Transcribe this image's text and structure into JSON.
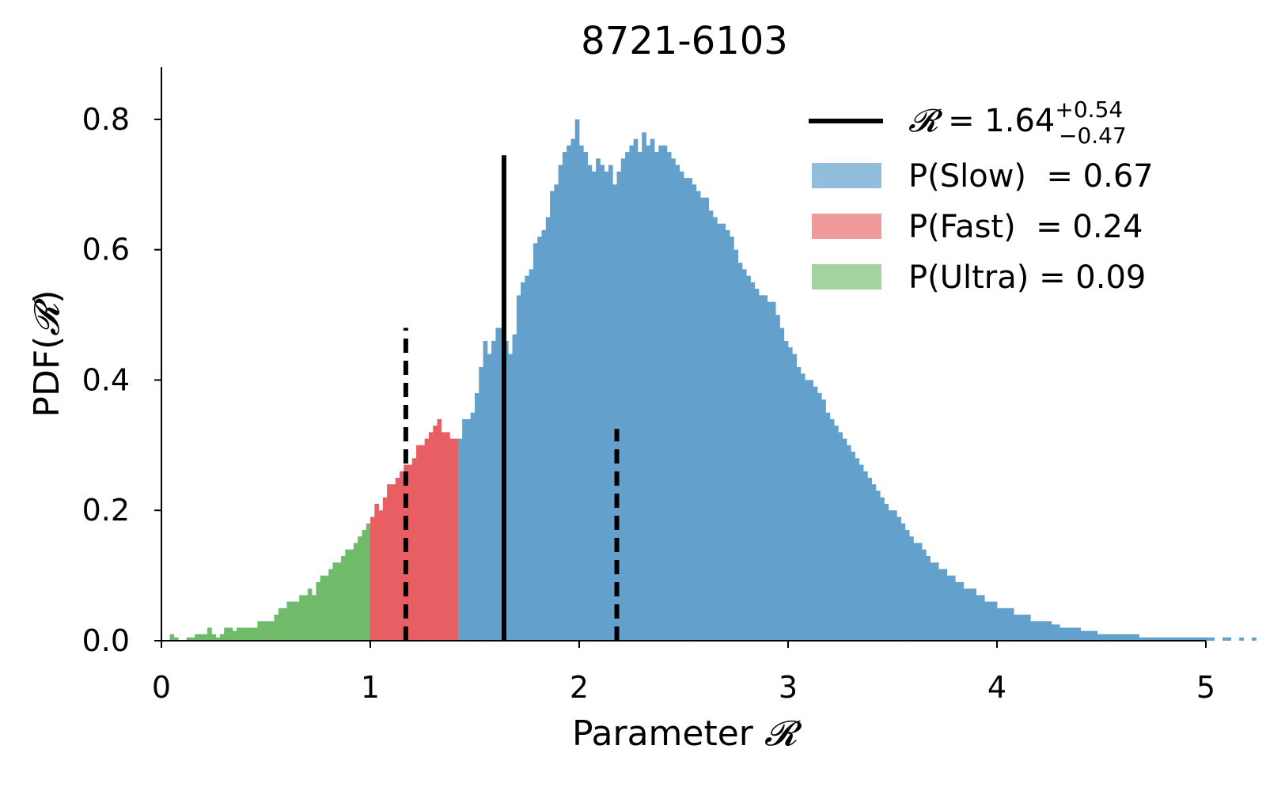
{
  "chart_data": {
    "type": "bar",
    "title": "8721-6103",
    "xlabel_prefix": "Parameter ",
    "xlabel_symbol": "𝓡",
    "ylabel_prefix": "PDF(",
    "ylabel_symbol": "𝓡",
    "ylabel_suffix": ")",
    "xlim": [
      0,
      5
    ],
    "ylim": [
      0,
      0.88
    ],
    "xticks": [
      0,
      1,
      2,
      3,
      4,
      5
    ],
    "yticks": [
      0.0,
      0.2,
      0.4,
      0.6,
      0.8
    ],
    "xtick_labels": [
      "0",
      "1",
      "2",
      "3",
      "4",
      "5"
    ],
    "ytick_labels": [
      "0.0",
      "0.2",
      "0.4",
      "0.6",
      "0.8"
    ],
    "grid": false,
    "legend_position": "top-right",
    "bin_start": 0,
    "bin_width": 0.02,
    "series": [
      {
        "name": "Ultra",
        "color": "#6fbb6a",
        "x_range": [
          0,
          1.0
        ]
      },
      {
        "name": "Fast",
        "color": "#e85f63",
        "x_range": [
          1.0,
          1.42
        ]
      },
      {
        "name": "Slow",
        "color": "#63a0cb",
        "x_range": [
          1.42,
          5.0
        ]
      }
    ],
    "densities": [
      0,
      0,
      0.01,
      0.005,
      0,
      0,
      0.005,
      0.005,
      0.01,
      0.01,
      0.01,
      0.02,
      0.01,
      0.005,
      0.01,
      0.02,
      0.02,
      0.015,
      0.02,
      0.02,
      0.02,
      0.02,
      0.02,
      0.03,
      0.03,
      0.03,
      0.03,
      0.04,
      0.05,
      0.05,
      0.06,
      0.06,
      0.06,
      0.07,
      0.07,
      0.08,
      0.07,
      0.09,
      0.1,
      0.1,
      0.11,
      0.12,
      0.12,
      0.13,
      0.14,
      0.14,
      0.15,
      0.16,
      0.17,
      0.18,
      0.19,
      0.21,
      0.2,
      0.22,
      0.24,
      0.24,
      0.25,
      0.26,
      0.27,
      0.27,
      0.28,
      0.3,
      0.3,
      0.31,
      0.32,
      0.33,
      0.34,
      0.32,
      0.32,
      0.31,
      0.31,
      0.31,
      0.34,
      0.34,
      0.35,
      0.38,
      0.42,
      0.46,
      0.44,
      0.46,
      0.48,
      0.48,
      0.46,
      0.44,
      0.47,
      0.53,
      0.55,
      0.56,
      0.57,
      0.61,
      0.62,
      0.63,
      0.65,
      0.69,
      0.7,
      0.73,
      0.75,
      0.76,
      0.77,
      0.8,
      0.76,
      0.75,
      0.73,
      0.72,
      0.74,
      0.73,
      0.72,
      0.73,
      0.7,
      0.72,
      0.74,
      0.75,
      0.76,
      0.77,
      0.75,
      0.78,
      0.76,
      0.77,
      0.75,
      0.76,
      0.76,
      0.75,
      0.74,
      0.73,
      0.72,
      0.71,
      0.71,
      0.7,
      0.69,
      0.68,
      0.68,
      0.66,
      0.65,
      0.64,
      0.64,
      0.63,
      0.62,
      0.6,
      0.58,
      0.57,
      0.56,
      0.55,
      0.54,
      0.53,
      0.53,
      0.52,
      0.52,
      0.5,
      0.48,
      0.46,
      0.45,
      0.44,
      0.42,
      0.41,
      0.4,
      0.4,
      0.39,
      0.38,
      0.37,
      0.35,
      0.34,
      0.33,
      0.32,
      0.31,
      0.3,
      0.29,
      0.28,
      0.27,
      0.26,
      0.25,
      0.24,
      0.23,
      0.22,
      0.21,
      0.2,
      0.2,
      0.19,
      0.18,
      0.17,
      0.16,
      0.15,
      0.15,
      0.14,
      0.13,
      0.12,
      0.12,
      0.11,
      0.11,
      0.1,
      0.1,
      0.09,
      0.09,
      0.08,
      0.08,
      0.08,
      0.07,
      0.07,
      0.06,
      0.06,
      0.06,
      0.05,
      0.05,
      0.05,
      0.05,
      0.04,
      0.04,
      0.04,
      0.04,
      0.03,
      0.03,
      0.03,
      0.03,
      0.03,
      0.025,
      0.025,
      0.02,
      0.02,
      0.02,
      0.02,
      0.02,
      0.015,
      0.015,
      0.015,
      0.015,
      0.01,
      0.01,
      0.01,
      0.01,
      0.01,
      0.01,
      0.01,
      0.01,
      0.01,
      0.01,
      0.005,
      0.005,
      0.005,
      0.005,
      0.005,
      0.005,
      0.005,
      0.005,
      0.005,
      0.005,
      0.005,
      0.005,
      0.005,
      0.005,
      0.005,
      0.005,
      0.005,
      0.005,
      0,
      0,
      0.005,
      0.005,
      0,
      0,
      0.005,
      0,
      0,
      0.005,
      0,
      0,
      0,
      0,
      0,
      0,
      0,
      0,
      0,
      0
    ],
    "median": {
      "value": 1.64,
      "height": 0.745,
      "plus": 0.54,
      "minus": 0.47
    },
    "bounds": [
      {
        "value": 1.17,
        "height": 0.48
      },
      {
        "value": 2.18,
        "height": 0.325
      }
    ],
    "legend": {
      "median_label_symbol": "𝓡",
      "median_label_equals": " = 1.64",
      "median_label_plus": "+0.54",
      "median_label_minus": "−0.47",
      "entries": [
        {
          "label": "P(Slow)  = 0.67",
          "color": "#93bddd"
        },
        {
          "label": "P(Fast)  = 0.24",
          "color": "#f19a9c"
        },
        {
          "label": "P(Ultra) = 0.09",
          "color": "#a3d39f"
        }
      ]
    }
  }
}
